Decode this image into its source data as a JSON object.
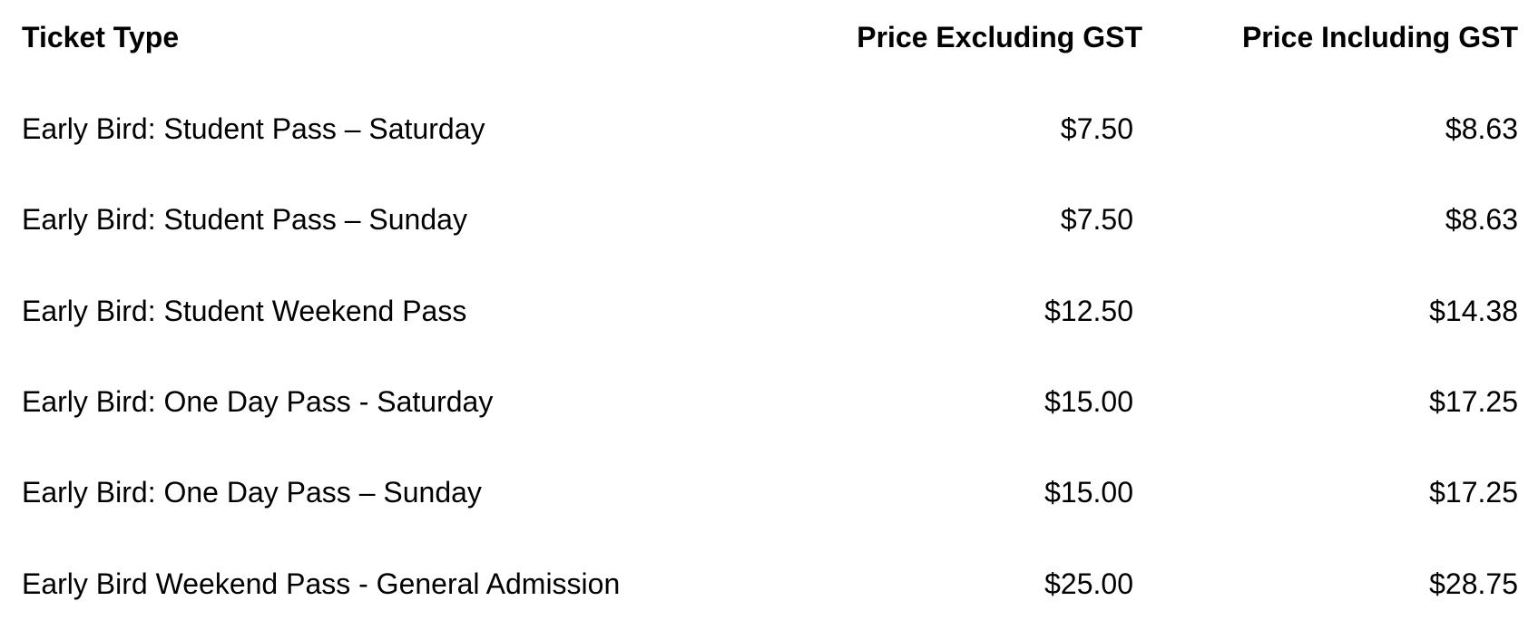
{
  "table": {
    "headers": [
      "Ticket Type",
      "Price Excluding GST",
      "Price Including GST"
    ],
    "rows": [
      {
        "type": "Early Bird: Student Pass – Saturday",
        "excl": "$7.50",
        "incl": "$8.63"
      },
      {
        "type": "Early Bird: Student Pass – Sunday",
        "excl": "$7.50",
        "incl": "$8.63"
      },
      {
        "type": "Early Bird: Student Weekend Pass",
        "excl": "$12.50",
        "incl": "$14.38"
      },
      {
        "type": "Early Bird: One Day Pass - Saturday",
        "excl": "$15.00",
        "incl": "$17.25"
      },
      {
        "type": "Early Bird: One Day Pass – Sunday",
        "excl": "$15.00",
        "incl": "$17.25"
      },
      {
        "type": "Early Bird Weekend Pass - General Admission",
        "excl": "$25.00",
        "incl": "$28.75"
      }
    ]
  }
}
